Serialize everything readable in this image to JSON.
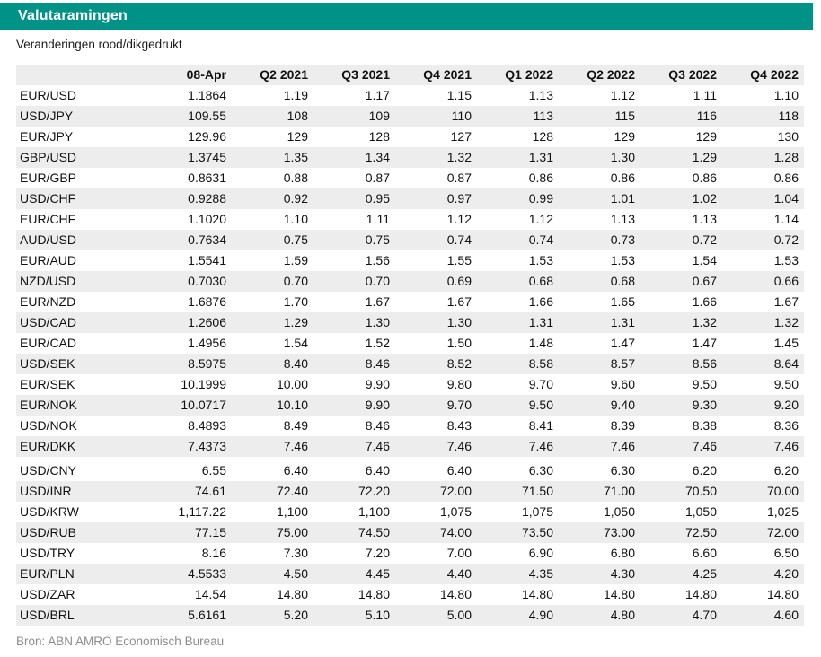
{
  "header": {
    "title": "Valutaramingen"
  },
  "note": "Veranderingen rood/dikgedrukt",
  "footer": {
    "source": "Bron: ABN AMRO Economisch Bureau"
  },
  "colors": {
    "accent": "#009286",
    "stripe": "#EDEDED",
    "rule": "#B0B0B0",
    "muted_text": "#8C8C8C"
  },
  "table": {
    "columns": [
      "",
      "08-Apr",
      "Q2 2021",
      "Q3 2021",
      "Q4 2021",
      "Q1 2022",
      "Q2 2022",
      "Q3 2022",
      "Q4 2022"
    ],
    "group_break_before": "USD/CNY",
    "rows": [
      {
        "pair": "EUR/USD",
        "values": [
          "1.1864",
          "1.19",
          "1.17",
          "1.15",
          "1.13",
          "1.12",
          "1.11",
          "1.10"
        ]
      },
      {
        "pair": "USD/JPY",
        "values": [
          "109.55",
          "108",
          "109",
          "110",
          "113",
          "115",
          "116",
          "118"
        ]
      },
      {
        "pair": "EUR/JPY",
        "values": [
          "129.96",
          "129",
          "128",
          "127",
          "128",
          "129",
          "129",
          "130"
        ]
      },
      {
        "pair": "GBP/USD",
        "values": [
          "1.3745",
          "1.35",
          "1.34",
          "1.32",
          "1.31",
          "1.30",
          "1.29",
          "1.28"
        ]
      },
      {
        "pair": "EUR/GBP",
        "values": [
          "0.8631",
          "0.88",
          "0.87",
          "0.87",
          "0.86",
          "0.86",
          "0.86",
          "0.86"
        ]
      },
      {
        "pair": "USD/CHF",
        "values": [
          "0.9288",
          "0.92",
          "0.95",
          "0.97",
          "0.99",
          "1.01",
          "1.02",
          "1.04"
        ]
      },
      {
        "pair": "EUR/CHF",
        "values": [
          "1.1020",
          "1.10",
          "1.11",
          "1.12",
          "1.12",
          "1.13",
          "1.13",
          "1.14"
        ]
      },
      {
        "pair": "AUD/USD",
        "values": [
          "0.7634",
          "0.75",
          "0.75",
          "0.74",
          "0.74",
          "0.73",
          "0.72",
          "0.72"
        ]
      },
      {
        "pair": "EUR/AUD",
        "values": [
          "1.5541",
          "1.59",
          "1.56",
          "1.55",
          "1.53",
          "1.53",
          "1.54",
          "1.53"
        ]
      },
      {
        "pair": "NZD/USD",
        "values": [
          "0.7030",
          "0.70",
          "0.70",
          "0.69",
          "0.68",
          "0.68",
          "0.67",
          "0.66"
        ]
      },
      {
        "pair": "EUR/NZD",
        "values": [
          "1.6876",
          "1.70",
          "1.67",
          "1.67",
          "1.66",
          "1.65",
          "1.66",
          "1.67"
        ]
      },
      {
        "pair": "USD/CAD",
        "values": [
          "1.2606",
          "1.29",
          "1.30",
          "1.30",
          "1.31",
          "1.31",
          "1.32",
          "1.32"
        ]
      },
      {
        "pair": "EUR/CAD",
        "values": [
          "1.4956",
          "1.54",
          "1.52",
          "1.50",
          "1.48",
          "1.47",
          "1.47",
          "1.45"
        ]
      },
      {
        "pair": "USD/SEK",
        "values": [
          "8.5975",
          "8.40",
          "8.46",
          "8.52",
          "8.58",
          "8.57",
          "8.56",
          "8.64"
        ]
      },
      {
        "pair": "EUR/SEK",
        "values": [
          "10.1999",
          "10.00",
          "9.90",
          "9.80",
          "9.70",
          "9.60",
          "9.50",
          "9.50"
        ]
      },
      {
        "pair": "EUR/NOK",
        "values": [
          "10.0717",
          "10.10",
          "9.90",
          "9.70",
          "9.50",
          "9.40",
          "9.30",
          "9.20"
        ]
      },
      {
        "pair": "USD/NOK",
        "values": [
          "8.4893",
          "8.49",
          "8.46",
          "8.43",
          "8.41",
          "8.39",
          "8.38",
          "8.36"
        ]
      },
      {
        "pair": "EUR/DKK",
        "values": [
          "7.4373",
          "7.46",
          "7.46",
          "7.46",
          "7.46",
          "7.46",
          "7.46",
          "7.46"
        ]
      },
      {
        "pair": "USD/CNY",
        "values": [
          "6.55",
          "6.40",
          "6.40",
          "6.40",
          "6.30",
          "6.30",
          "6.20",
          "6.20"
        ]
      },
      {
        "pair": "USD/INR",
        "values": [
          "74.61",
          "72.40",
          "72.20",
          "72.00",
          "71.50",
          "71.00",
          "70.50",
          "70.00"
        ]
      },
      {
        "pair": "USD/KRW",
        "values": [
          "1,117.22",
          "1,100",
          "1,100",
          "1,075",
          "1,075",
          "1,050",
          "1,050",
          "1,025"
        ]
      },
      {
        "pair": "USD/RUB",
        "values": [
          "77.15",
          "75.00",
          "74.50",
          "74.00",
          "73.50",
          "73.00",
          "72.50",
          "72.00"
        ]
      },
      {
        "pair": "USD/TRY",
        "values": [
          "8.16",
          "7.30",
          "7.20",
          "7.00",
          "6.90",
          "6.80",
          "6.60",
          "6.50"
        ]
      },
      {
        "pair": "EUR/PLN",
        "values": [
          "4.5533",
          "4.50",
          "4.45",
          "4.40",
          "4.35",
          "4.30",
          "4.25",
          "4.20"
        ]
      },
      {
        "pair": "USD/ZAR",
        "values": [
          "14.54",
          "14.80",
          "14.80",
          "14.80",
          "14.80",
          "14.80",
          "14.80",
          "14.80"
        ]
      },
      {
        "pair": "USD/BRL",
        "values": [
          "5.6161",
          "5.20",
          "5.10",
          "5.00",
          "4.90",
          "4.80",
          "4.70",
          "4.60"
        ]
      }
    ]
  }
}
